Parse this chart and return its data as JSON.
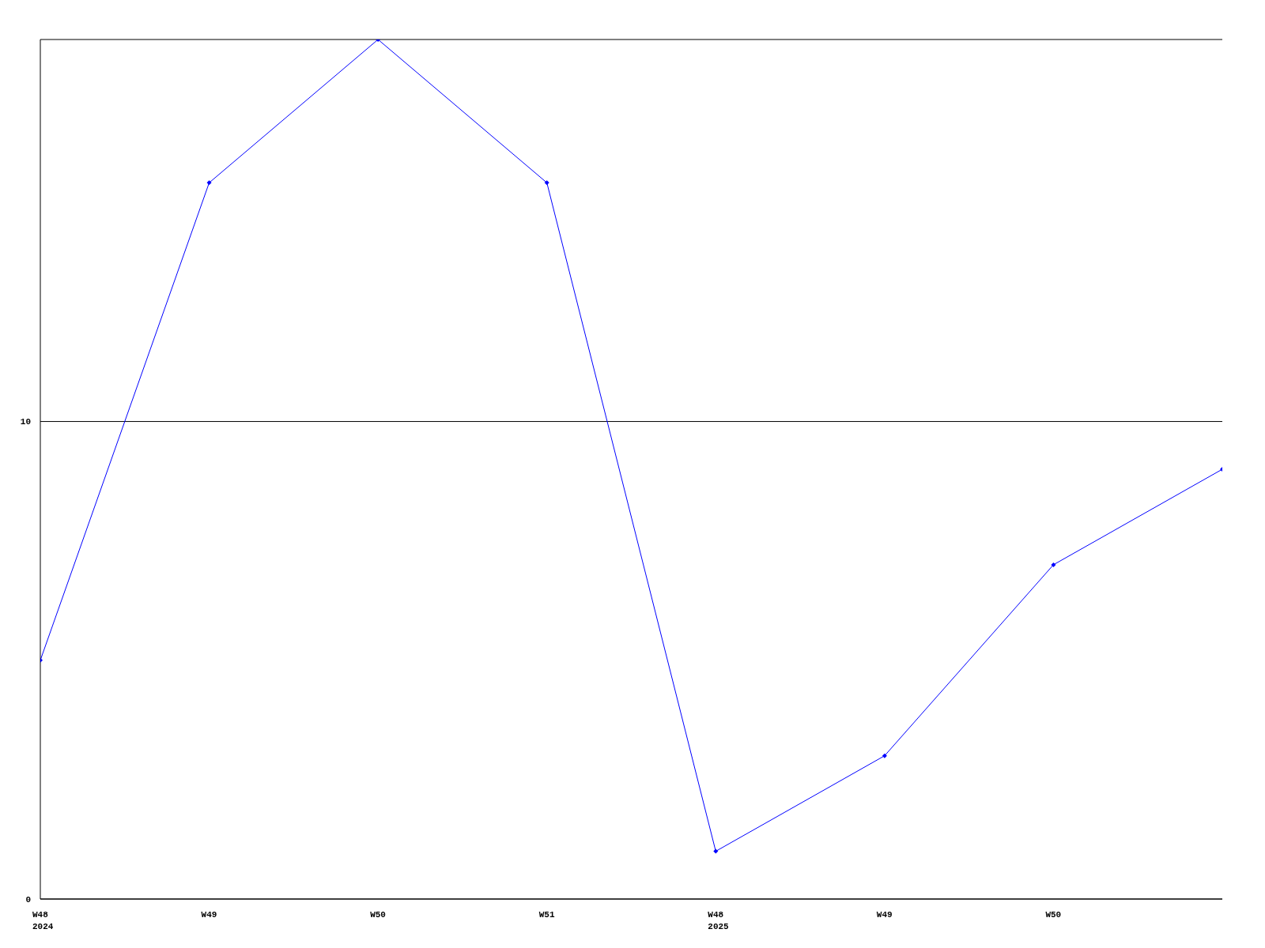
{
  "chart_data": {
    "type": "line",
    "categories": [
      "W48\n2024",
      "W49",
      "W50",
      "W51",
      "W48\n2025",
      "W49",
      "W50",
      null
    ],
    "series": [
      {
        "color": "#0000ff",
        "values": [
          5,
          15,
          18,
          15,
          1,
          3,
          7,
          9
        ]
      }
    ],
    "ylim": [
      0,
      18
    ],
    "yticks": [
      0,
      10
    ],
    "grid": "y",
    "marker": "diamond",
    "line_style": "solid",
    "legend": false
  }
}
